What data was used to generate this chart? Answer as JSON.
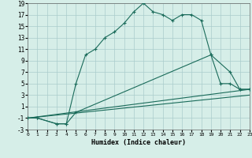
{
  "title": "",
  "xlabel": "Humidex (Indice chaleur)",
  "bg_color": "#d6eee8",
  "grid_color": "#aacccc",
  "line_color": "#1a6b5a",
  "xlim": [
    0,
    23
  ],
  "ylim": [
    -3,
    19
  ],
  "xticks": [
    0,
    1,
    2,
    3,
    4,
    5,
    6,
    7,
    8,
    9,
    10,
    11,
    12,
    13,
    14,
    15,
    16,
    17,
    18,
    19,
    20,
    21,
    22,
    23
  ],
  "yticks": [
    -3,
    -1,
    1,
    3,
    5,
    7,
    9,
    11,
    13,
    15,
    17,
    19
  ],
  "curve1_x": [
    0,
    1,
    3,
    4,
    5,
    6,
    7,
    8,
    9,
    10,
    11,
    12,
    13,
    14,
    15,
    16,
    17,
    18,
    19,
    21,
    22,
    23
  ],
  "curve1_y": [
    -1,
    -1,
    -2,
    -2,
    5,
    10,
    11,
    13,
    14,
    15.5,
    17.5,
    19,
    17.5,
    17,
    16,
    17,
    17,
    16,
    10,
    7,
    4,
    4
  ],
  "curve2_x": [
    0,
    1,
    3,
    4,
    5,
    19,
    20,
    21,
    22,
    23
  ],
  "curve2_y": [
    -1,
    -1,
    -2,
    -2,
    0,
    10,
    5,
    5,
    4,
    4
  ],
  "curve3_x": [
    0,
    23
  ],
  "curve3_y": [
    -1,
    4
  ],
  "curve4_x": [
    0,
    23
  ],
  "curve4_y": [
    -1,
    3
  ]
}
